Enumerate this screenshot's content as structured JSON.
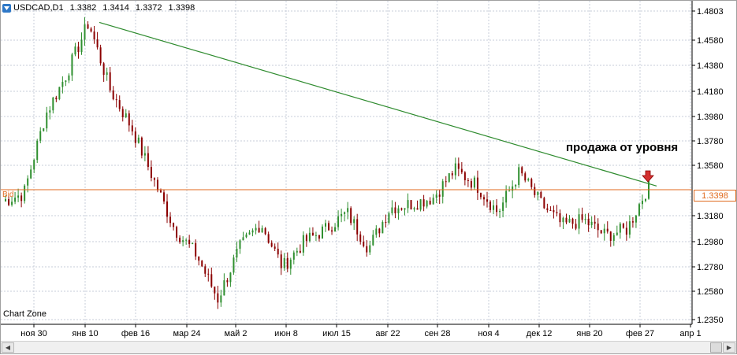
{
  "header": {
    "symbol": "USDCAD,D1",
    "open": "1.3382",
    "high": "1.3414",
    "low": "1.3372",
    "close": "1.3398"
  },
  "watermark": "Chart Zone",
  "annotation": "продажа от уровня",
  "bid_label": "Bid",
  "current_price": "1.3398",
  "colors": {
    "bull": "#2f8f2f",
    "bear": "#8b0000",
    "grid": "#c7ccd8",
    "trendline": "#2e8b2e",
    "bid_line": "#e06a1e",
    "arrow": "#d32f2f"
  },
  "chart_data": {
    "type": "candlestick",
    "title": "USDCAD,D1",
    "ylim": [
      1.23,
      1.485
    ],
    "y_ticks": [
      "1.4803",
      "1.4580",
      "1.4380",
      "1.4180",
      "1.3980",
      "1.3780",
      "1.3580",
      "1.3398",
      "1.3180",
      "1.2980",
      "1.2780",
      "1.2580",
      "1.2350"
    ],
    "x_ticks": [
      "ноя 30",
      "янв 10",
      "фев 16",
      "мар 24",
      "май 2",
      "июн 8",
      "июл 15",
      "авг 22",
      "сен 28",
      "ноя 4",
      "дек 12",
      "янв 20",
      "фев 27",
      "апр 1"
    ],
    "anchors": [
      {
        "x": "ноя 30",
        "price": 1.327
      },
      {
        "x": "ноя 30+",
        "price": 1.333
      },
      {
        "x": "дек 20",
        "price": 1.395
      },
      {
        "x": "янв 10",
        "price": 1.428
      },
      {
        "x": "янв 20",
        "price": 1.468
      },
      {
        "x": "фев 1",
        "price": 1.415
      },
      {
        "x": "фев 16",
        "price": 1.385
      },
      {
        "x": "мар 1",
        "price": 1.345
      },
      {
        "x": "мар 24",
        "price": 1.305
      },
      {
        "x": "апр 10",
        "price": 1.285
      },
      {
        "x": "май 2",
        "price": 1.25
      },
      {
        "x": "май 20",
        "price": 1.29
      },
      {
        "x": "июн 1",
        "price": 1.31
      },
      {
        "x": "июн 8",
        "price": 1.275
      },
      {
        "x": "июн 25",
        "price": 1.295
      },
      {
        "x": "июл 15",
        "price": 1.305
      },
      {
        "x": "авг 5",
        "price": 1.318
      },
      {
        "x": "авг 22",
        "price": 1.29
      },
      {
        "x": "сен 10",
        "price": 1.322
      },
      {
        "x": "сен 28",
        "price": 1.325
      },
      {
        "x": "окт 15",
        "price": 1.33
      },
      {
        "x": "ноя 4",
        "price": 1.352
      },
      {
        "x": "ноя 20",
        "price": 1.34
      },
      {
        "x": "дек 1",
        "price": 1.318
      },
      {
        "x": "дек 12",
        "price": 1.35
      },
      {
        "x": "дек 25",
        "price": 1.325
      },
      {
        "x": "янв 5",
        "price": 1.308
      },
      {
        "x": "янв 20",
        "price": 1.312
      },
      {
        "x": "фев 5",
        "price": 1.3
      },
      {
        "x": "фев 20",
        "price": 1.305
      },
      {
        "x": "фев 27",
        "price": 1.3398
      }
    ],
    "trendline": {
      "from": {
        "x": "янв 20",
        "price": 1.468
      },
      "to": {
        "x": "фев 27+",
        "price": 1.339
      }
    },
    "bid_level": 1.3398
  }
}
